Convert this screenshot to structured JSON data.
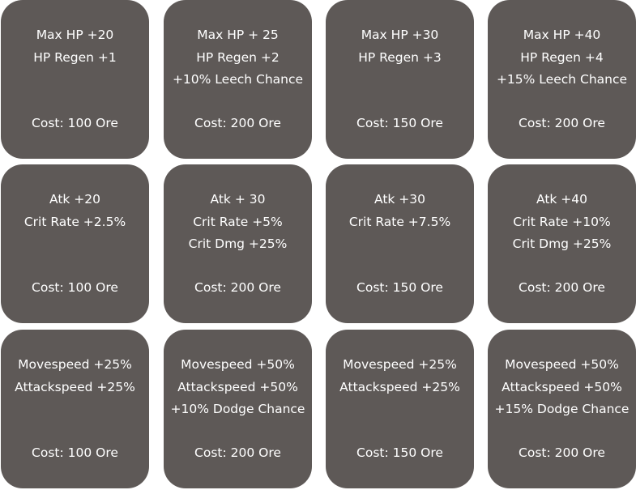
{
  "cards": [
    [
      {
        "lines": [
          "Max HP +20",
          "HP Regen +1"
        ],
        "cost": "Cost: 100 Ore"
      },
      {
        "lines": [
          "Max HP + 25",
          "HP Regen +2",
          "+10% Leech Chance"
        ],
        "cost": "Cost: 200 Ore"
      },
      {
        "lines": [
          "Max HP +30",
          "HP Regen +3"
        ],
        "cost": "Cost: 150 Ore"
      },
      {
        "lines": [
          "Max HP +40",
          "HP Regen +4",
          "+15% Leech Chance"
        ],
        "cost": "Cost: 200 Ore"
      }
    ],
    [
      {
        "lines": [
          "Atk +20",
          "Crit Rate +2.5%"
        ],
        "cost": "Cost: 100 Ore"
      },
      {
        "lines": [
          "Atk + 30",
          "Crit Rate +5%",
          "Crit Dmg +25%"
        ],
        "cost": "Cost: 200 Ore"
      },
      {
        "lines": [
          "Atk +30",
          "Crit Rate +7.5%"
        ],
        "cost": "Cost: 150 Ore"
      },
      {
        "lines": [
          "Atk +40",
          "Crit Rate +10%",
          "Crit Dmg +25%"
        ],
        "cost": "Cost: 200 Ore"
      }
    ],
    [
      {
        "lines": [
          "Movespeed +25%",
          "Attackspeed +25%"
        ],
        "cost": "Cost: 100 Ore"
      },
      {
        "lines": [
          "Movespeed +50%",
          "Attackspeed +50%",
          "+10% Dodge Chance"
        ],
        "cost": "Cost: 200 Ore"
      },
      {
        "lines": [
          "Movespeed +25%",
          "Attackspeed +25%"
        ],
        "cost": "Cost: 150 Ore"
      },
      {
        "lines": [
          "Movespeed +50%",
          "Attackspeed +50%",
          "+15% Dodge Chance"
        ],
        "cost": "Cost: 200 Ore"
      }
    ]
  ],
  "colors": {
    "card_background": "#5e5957",
    "text": "#ffffff",
    "page_background": "#ffffff"
  }
}
